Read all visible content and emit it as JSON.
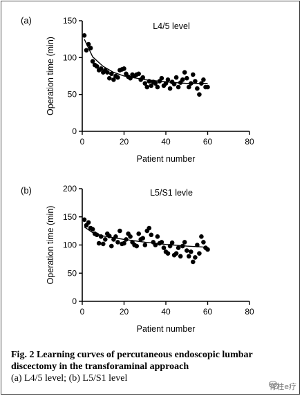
{
  "chart_data": [
    {
      "type": "scatter",
      "panel_label": "(a)",
      "title": "L4/5 level",
      "xlabel": "Patient number",
      "ylabel": "Operation time (min)",
      "xlim": [
        0,
        80
      ],
      "ylim": [
        0,
        150
      ],
      "xticks": [
        0,
        20,
        40,
        60,
        80
      ],
      "yticks": [
        0,
        50,
        100,
        150
      ],
      "grid": false,
      "trend": "decaying fitted curve",
      "points": [
        [
          1,
          130
        ],
        [
          2,
          110
        ],
        [
          3,
          118
        ],
        [
          4,
          113
        ],
        [
          5,
          95
        ],
        [
          6,
          90
        ],
        [
          7,
          88
        ],
        [
          8,
          83
        ],
        [
          9,
          85
        ],
        [
          10,
          80
        ],
        [
          11,
          83
        ],
        [
          12,
          80
        ],
        [
          13,
          72
        ],
        [
          14,
          78
        ],
        [
          15,
          70
        ],
        [
          16,
          75
        ],
        [
          17,
          73
        ],
        [
          18,
          83
        ],
        [
          19,
          84
        ],
        [
          20,
          85
        ],
        [
          21,
          78
        ],
        [
          22,
          74
        ],
        [
          23,
          72
        ],
        [
          24,
          77
        ],
        [
          25,
          75
        ],
        [
          26,
          77
        ],
        [
          27,
          78
        ],
        [
          28,
          70
        ],
        [
          29,
          73
        ],
        [
          30,
          65
        ],
        [
          31,
          60
        ],
        [
          32,
          68
        ],
        [
          33,
          62
        ],
        [
          34,
          67
        ],
        [
          35,
          65
        ],
        [
          36,
          60
        ],
        [
          37,
          68
        ],
        [
          38,
          72
        ],
        [
          39,
          62
        ],
        [
          40,
          65
        ],
        [
          41,
          70
        ],
        [
          42,
          58
        ],
        [
          43,
          67
        ],
        [
          44,
          64
        ],
        [
          45,
          73
        ],
        [
          46,
          60
        ],
        [
          47,
          66
        ],
        [
          48,
          70
        ],
        [
          49,
          80
        ],
        [
          50,
          72
        ],
        [
          51,
          60
        ],
        [
          52,
          65
        ],
        [
          53,
          77
        ],
        [
          54,
          68
        ],
        [
          55,
          58
        ],
        [
          56,
          50
        ],
        [
          57,
          65
        ],
        [
          58,
          70
        ],
        [
          59,
          60
        ],
        [
          60,
          60
        ]
      ],
      "fit": [
        [
          1,
          125
        ],
        [
          5,
          101
        ],
        [
          10,
          88
        ],
        [
          15,
          80
        ],
        [
          20,
          75
        ],
        [
          30,
          70
        ],
        [
          40,
          67
        ],
        [
          50,
          65
        ],
        [
          60,
          65
        ]
      ]
    },
    {
      "type": "scatter",
      "panel_label": "(b)",
      "title": "L5/S1 levle",
      "xlabel": "Patient number",
      "ylabel": "Operation time (min)",
      "xlim": [
        0,
        80
      ],
      "ylim": [
        0,
        200
      ],
      "xticks": [
        0,
        20,
        40,
        60,
        80
      ],
      "yticks": [
        0,
        50,
        100,
        150,
        200
      ],
      "grid": false,
      "trend": "gently declining fitted curve",
      "points": [
        [
          1,
          145
        ],
        [
          2,
          135
        ],
        [
          3,
          140
        ],
        [
          4,
          130
        ],
        [
          5,
          128
        ],
        [
          6,
          120
        ],
        [
          7,
          118
        ],
        [
          8,
          103
        ],
        [
          9,
          115
        ],
        [
          10,
          102
        ],
        [
          11,
          110
        ],
        [
          12,
          120
        ],
        [
          13,
          116
        ],
        [
          14,
          98
        ],
        [
          15,
          110
        ],
        [
          16,
          115
        ],
        [
          17,
          105
        ],
        [
          18,
          125
        ],
        [
          19,
          102
        ],
        [
          20,
          103
        ],
        [
          21,
          110
        ],
        [
          22,
          120
        ],
        [
          23,
          115
        ],
        [
          24,
          105
        ],
        [
          25,
          100
        ],
        [
          26,
          98
        ],
        [
          27,
          120
        ],
        [
          28,
          110
        ],
        [
          29,
          112
        ],
        [
          30,
          100
        ],
        [
          31,
          125
        ],
        [
          32,
          130
        ],
        [
          33,
          118
        ],
        [
          34,
          105
        ],
        [
          35,
          100
        ],
        [
          36,
          115
        ],
        [
          37,
          103
        ],
        [
          38,
          105
        ],
        [
          39,
          95
        ],
        [
          40,
          88
        ],
        [
          41,
          85
        ],
        [
          42,
          98
        ],
        [
          43,
          104
        ],
        [
          44,
          82
        ],
        [
          45,
          85
        ],
        [
          46,
          95
        ],
        [
          47,
          80
        ],
        [
          48,
          98
        ],
        [
          49,
          105
        ],
        [
          50,
          90
        ],
        [
          51,
          80
        ],
        [
          52,
          88
        ],
        [
          53,
          70
        ],
        [
          54,
          78
        ],
        [
          55,
          100
        ],
        [
          56,
          85
        ],
        [
          57,
          115
        ],
        [
          58,
          105
        ],
        [
          59,
          95
        ],
        [
          60,
          92
        ]
      ],
      "fit": [
        [
          1,
          132
        ],
        [
          5,
          122
        ],
        [
          10,
          116
        ],
        [
          20,
          110
        ],
        [
          30,
          105
        ],
        [
          40,
          101
        ],
        [
          50,
          98
        ],
        [
          60,
          96
        ]
      ]
    }
  ],
  "caption": {
    "title": "Fig. 2  Learning curves of percutaneous endoscopic lumbar discectomy in the transforaminal approach",
    "subtitle": "(a) L4/5 level; (b) L5/S1 level"
  },
  "watermark": {
    "text": "脊柱e疗",
    "icon": "wechat-icon"
  }
}
